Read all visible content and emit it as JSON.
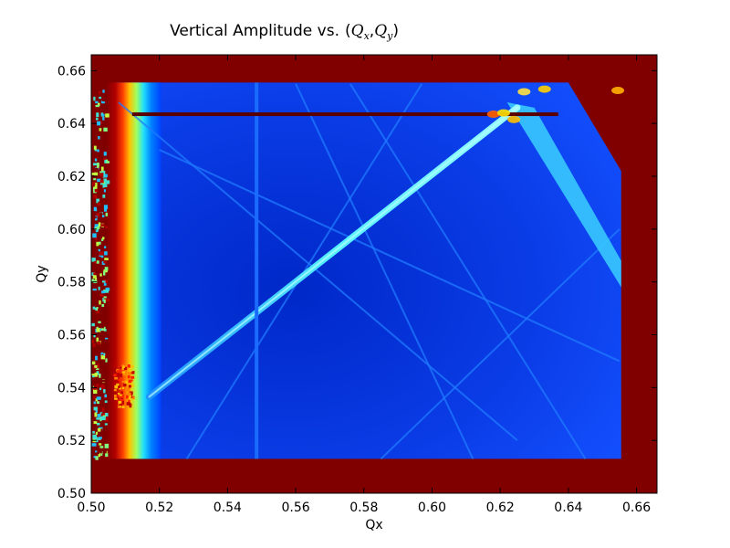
{
  "chart_data": {
    "type": "heatmap",
    "title": "Vertical Amplitude vs.",
    "title_math": {
      "open": "(",
      "x_var": "Q",
      "x_sub": "x",
      "sep": ",",
      "y_var": "Q",
      "y_sub": "y",
      "close": ")"
    },
    "xlabel": "Qx",
    "ylabel": "Qy",
    "xlim": [
      0.5,
      0.666
    ],
    "ylim": [
      0.5,
      0.666
    ],
    "xticks": [
      "0.50",
      "0.52",
      "0.54",
      "0.56",
      "0.58",
      "0.60",
      "0.62",
      "0.64",
      "0.66"
    ],
    "yticks": [
      "0.50",
      "0.52",
      "0.54",
      "0.56",
      "0.58",
      "0.60",
      "0.62",
      "0.64",
      "0.66"
    ],
    "colormap": "jet",
    "colors": {
      "background_saturated": "#800000",
      "field_low": "#00009a",
      "field_mid": "#0a3cf0",
      "resonance_line": "#1f7bff",
      "main_resonance": "#45e0ff"
    },
    "data_region": {
      "x_range": [
        0.5,
        0.6555
      ],
      "y_range": [
        0.513,
        0.6555
      ]
    },
    "features": {
      "horizontal_band_qy": 0.6435,
      "vertical_resonance_qx": 0.5485,
      "main_resonance": [
        [
          0.517,
          0.5365
        ],
        [
          0.625,
          0.646
        ]
      ],
      "diagonal_resonances": [
        [
          [
            0.528,
            0.513
          ],
          [
            0.597,
            0.655
          ]
        ],
        [
          [
            0.508,
            0.648
          ],
          [
            0.625,
            0.52
          ]
        ],
        [
          [
            0.576,
            0.655
          ],
          [
            0.645,
            0.513
          ]
        ],
        [
          [
            0.56,
            0.655
          ],
          [
            0.612,
            0.513
          ]
        ],
        [
          [
            0.52,
            0.63
          ],
          [
            0.655,
            0.55
          ]
        ],
        [
          [
            0.585,
            0.513
          ],
          [
            0.655,
            0.6
          ]
        ]
      ]
    }
  }
}
